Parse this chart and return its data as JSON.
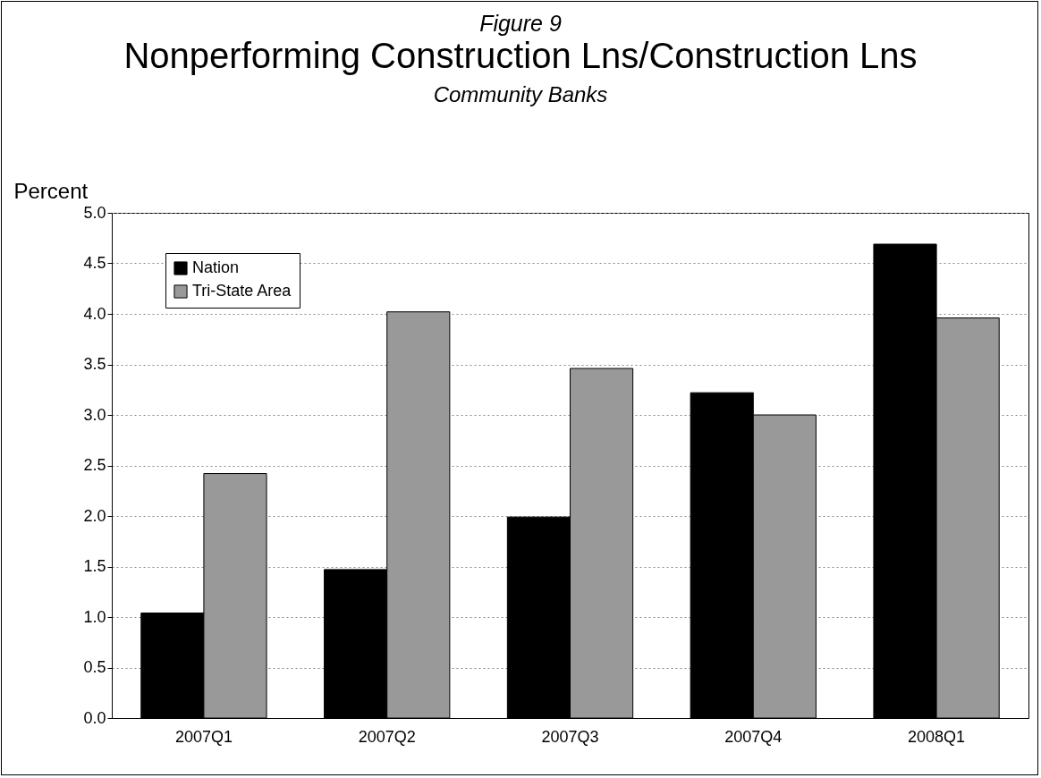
{
  "chart_data": {
    "type": "bar",
    "title": "Nonperforming Construction Lns/Construction Lns",
    "subtitle": "Community Banks",
    "annotations": [
      "Figure 9"
    ],
    "ylabel": "Percent",
    "categories": [
      "2007Q1",
      "2007Q2",
      "2007Q3",
      "2007Q4",
      "2008Q1"
    ],
    "series": [
      {
        "name": "Nation",
        "color": "#000000",
        "values": [
          1.04,
          1.47,
          1.99,
          3.22,
          4.69
        ]
      },
      {
        "name": "Tri-State Area",
        "color": "#999999",
        "values": [
          2.42,
          4.02,
          3.46,
          3.0,
          3.96
        ]
      }
    ],
    "ylim": [
      0,
      5
    ],
    "yticks": [
      {
        "value": 0,
        "label": "0.0"
      },
      0.5,
      {
        "value": 1,
        "label": "1.0"
      },
      1.5,
      {
        "value": 2,
        "label": "2.0"
      },
      2.5,
      {
        "value": 3,
        "label": "3.0"
      },
      3.5,
      {
        "value": 4,
        "label": "4.0"
      },
      4.5,
      {
        "value": 5,
        "label": "5.0"
      }
    ],
    "grid": "y",
    "legend": "top left"
  }
}
